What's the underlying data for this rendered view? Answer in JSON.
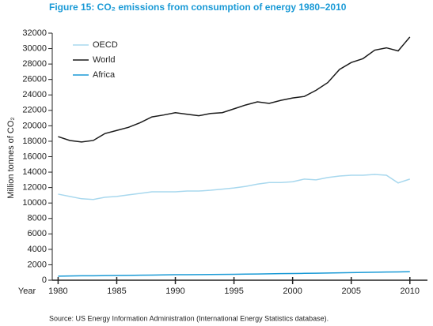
{
  "chart_data": {
    "type": "line",
    "title": "Figure 15: CO₂ emissions from consumption of energy 1980–2010",
    "y_label": "Million tonnes of CO₂",
    "x_label": "Year",
    "source": "Source: US Energy Information Administration (International Energy Statistics database).",
    "x": [
      1980,
      1981,
      1982,
      1983,
      1984,
      1985,
      1986,
      1987,
      1988,
      1989,
      1990,
      1991,
      1992,
      1993,
      1994,
      1995,
      1996,
      1997,
      1998,
      1999,
      2000,
      2001,
      2002,
      2003,
      2004,
      2005,
      2006,
      2007,
      2008,
      2009,
      2010
    ],
    "series": [
      {
        "name": "OECD",
        "color": "#a8d8ee",
        "values": [
          11150,
          10850,
          10550,
          10450,
          10750,
          10850,
          11050,
          11250,
          11450,
          11450,
          11450,
          11550,
          11550,
          11650,
          11800,
          11950,
          12150,
          12450,
          12650,
          12650,
          12750,
          13100,
          13000,
          13300,
          13500,
          13600,
          13600,
          13700,
          13600,
          12600,
          13100
        ]
      },
      {
        "name": "World",
        "color": "#1a1a1a",
        "values": [
          18600,
          18100,
          17900,
          18100,
          19000,
          19400,
          19800,
          20400,
          21150,
          21400,
          21700,
          21500,
          21300,
          21600,
          21700,
          22200,
          22700,
          23100,
          22900,
          23300,
          23600,
          23800,
          24600,
          25600,
          27300,
          28200,
          28700,
          29800,
          30100,
          29700,
          31500
        ]
      },
      {
        "name": "Africa",
        "color": "#1a9ad6",
        "values": [
          530,
          550,
          570,
          580,
          600,
          610,
          630,
          650,
          670,
          690,
          710,
          720,
          730,
          740,
          750,
          770,
          790,
          810,
          830,
          850,
          870,
          890,
          910,
          930,
          960,
          990,
          1010,
          1030,
          1060,
          1070,
          1100
        ]
      }
    ],
    "xlim": [
      1979.5,
      2011.5
    ],
    "xticks": [
      1980,
      1985,
      1990,
      1995,
      2000,
      2005,
      2010
    ],
    "ylim": [
      0,
      32000
    ],
    "yticks": [
      0,
      2000,
      4000,
      6000,
      8000,
      10000,
      12000,
      14000,
      16000,
      18000,
      20000,
      22000,
      24000,
      26000,
      28000,
      30000,
      32000
    ],
    "grid": false,
    "legend": "top-left"
  }
}
